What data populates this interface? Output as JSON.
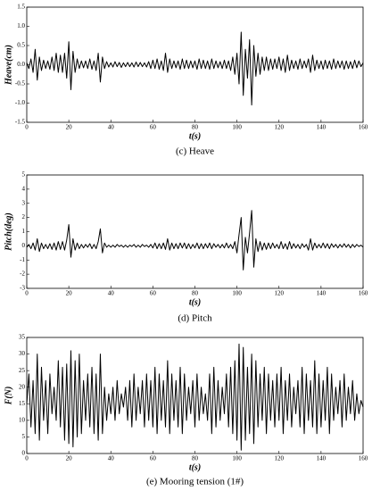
{
  "chart_data": [
    {
      "type": "line",
      "ylabel": "Heave(cm)",
      "xlabel": "t(s)",
      "caption": "(c) Heave",
      "color": "#000000",
      "xlim": [
        0,
        160
      ],
      "xticks": [
        0,
        20,
        40,
        60,
        80,
        100,
        120,
        140,
        160
      ],
      "ylim": [
        -1.5,
        1.5
      ],
      "yticks": [
        -1.5,
        {
          "value": -1,
          "label": "-1.0"
        },
        -0.5,
        {
          "value": 0,
          "label": "0.0"
        },
        0.5,
        {
          "value": 1,
          "label": "1.0"
        },
        1.5
      ],
      "x": [
        0,
        1,
        2,
        3,
        4,
        5,
        6,
        7,
        8,
        9,
        10,
        11,
        12,
        13,
        14,
        15,
        16,
        17,
        18,
        19,
        20,
        21,
        22,
        23,
        24,
        25,
        26,
        27,
        28,
        29,
        30,
        31,
        32,
        33,
        34,
        35,
        36,
        37,
        38,
        39,
        40,
        41,
        42,
        43,
        44,
        45,
        46,
        47,
        48,
        49,
        50,
        51,
        52,
        53,
        54,
        55,
        56,
        57,
        58,
        59,
        60,
        61,
        62,
        63,
        64,
        65,
        66,
        67,
        68,
        69,
        70,
        71,
        72,
        73,
        74,
        75,
        76,
        77,
        78,
        79,
        80,
        81,
        82,
        83,
        84,
        85,
        86,
        87,
        88,
        89,
        90,
        91,
        92,
        93,
        94,
        95,
        96,
        97,
        98,
        99,
        100,
        101,
        102,
        103,
        104,
        105,
        106,
        107,
        108,
        109,
        110,
        111,
        112,
        113,
        114,
        115,
        116,
        117,
        118,
        119,
        120,
        121,
        122,
        123,
        124,
        125,
        126,
        127,
        128,
        129,
        130,
        131,
        132,
        133,
        134,
        135,
        136,
        137,
        138,
        139,
        140,
        141,
        142,
        143,
        144,
        145,
        146,
        147,
        148,
        149,
        150,
        151,
        152,
        153,
        154,
        155,
        156,
        157,
        158,
        159,
        160
      ],
      "values": [
        0.05,
        -0.1,
        0.15,
        -0.2,
        0.4,
        -0.4,
        0.2,
        -0.15,
        0.12,
        -0.1,
        0.1,
        -0.12,
        0.2,
        -0.15,
        0.3,
        -0.2,
        0.25,
        -0.2,
        0.3,
        -0.35,
        0.6,
        -0.65,
        0.35,
        -0.2,
        0.15,
        -0.1,
        0.1,
        -0.08,
        0.1,
        -0.1,
        0.15,
        -0.12,
        0.1,
        -0.15,
        0.3,
        -0.45,
        0.2,
        -0.1,
        0.08,
        -0.06,
        0.05,
        -0.06,
        0.08,
        -0.05,
        0.06,
        -0.07,
        0.05,
        -0.05,
        0.06,
        -0.05,
        0.05,
        -0.06,
        0.07,
        -0.05,
        0.06,
        -0.05,
        0.05,
        -0.06,
        0.08,
        -0.1,
        0.12,
        -0.1,
        0.15,
        -0.12,
        0.1,
        -0.15,
        0.3,
        -0.2,
        0.15,
        -0.1,
        0.1,
        -0.08,
        0.1,
        -0.12,
        0.15,
        -0.1,
        0.12,
        -0.1,
        0.1,
        -0.08,
        0.1,
        -0.12,
        0.15,
        -0.1,
        0.12,
        -0.1,
        0.1,
        -0.12,
        0.15,
        -0.1,
        0.1,
        -0.08,
        0.08,
        -0.1,
        0.12,
        -0.1,
        0.1,
        -0.15,
        0.2,
        -0.25,
        0.3,
        -0.5,
        0.85,
        -0.8,
        0.4,
        -0.35,
        0.65,
        -1.05,
        0.5,
        -0.3,
        0.3,
        -0.25,
        0.2,
        -0.15,
        0.2,
        -0.15,
        0.15,
        -0.12,
        0.15,
        -0.1,
        0.2,
        -0.15,
        0.15,
        -0.2,
        0.25,
        -0.15,
        0.12,
        -0.1,
        0.1,
        -0.12,
        0.15,
        -0.1,
        0.1,
        -0.08,
        0.15,
        -0.2,
        0.25,
        -0.15,
        0.12,
        -0.1,
        0.1,
        -0.12,
        0.12,
        -0.1,
        0.1,
        -0.12,
        0.15,
        -0.1,
        0.1,
        -0.08,
        0.1,
        -0.12,
        0.1,
        -0.1,
        0.08,
        -0.1,
        0.12,
        -0.08,
        0.1,
        -0.05,
        0.05
      ]
    },
    {
      "type": "line",
      "ylabel": "Pitch(deg)",
      "xlabel": "t(s)",
      "caption": "(d) Pitch",
      "color": "#000000",
      "xlim": [
        0,
        160
      ],
      "xticks": [
        0,
        20,
        40,
        60,
        80,
        100,
        120,
        140,
        160
      ],
      "ylim": [
        -3,
        5
      ],
      "yticks": [
        -3,
        -2,
        -1,
        0,
        1,
        2,
        3,
        4,
        5
      ],
      "x": [
        0,
        1,
        2,
        3,
        4,
        5,
        6,
        7,
        8,
        9,
        10,
        11,
        12,
        13,
        14,
        15,
        16,
        17,
        18,
        19,
        20,
        21,
        22,
        23,
        24,
        25,
        26,
        27,
        28,
        29,
        30,
        31,
        32,
        33,
        34,
        35,
        36,
        37,
        38,
        39,
        40,
        41,
        42,
        43,
        44,
        45,
        46,
        47,
        48,
        49,
        50,
        51,
        52,
        53,
        54,
        55,
        56,
        57,
        58,
        59,
        60,
        61,
        62,
        63,
        64,
        65,
        66,
        67,
        68,
        69,
        70,
        71,
        72,
        73,
        74,
        75,
        76,
        77,
        78,
        79,
        80,
        81,
        82,
        83,
        84,
        85,
        86,
        87,
        88,
        89,
        90,
        91,
        92,
        93,
        94,
        95,
        96,
        97,
        98,
        99,
        100,
        101,
        102,
        103,
        104,
        105,
        106,
        107,
        108,
        109,
        110,
        111,
        112,
        113,
        114,
        115,
        116,
        117,
        118,
        119,
        120,
        121,
        122,
        123,
        124,
        125,
        126,
        127,
        128,
        129,
        130,
        131,
        132,
        133,
        134,
        135,
        136,
        137,
        138,
        139,
        140,
        141,
        142,
        143,
        144,
        145,
        146,
        147,
        148,
        149,
        150,
        151,
        152,
        153,
        154,
        155,
        156,
        157,
        158,
        159,
        160
      ],
      "values": [
        -0.1,
        0.1,
        -0.2,
        0.2,
        -0.3,
        0.5,
        -0.4,
        0.2,
        -0.2,
        0.1,
        -0.2,
        0.15,
        -0.25,
        0.2,
        -0.3,
        0.3,
        -0.25,
        0.3,
        -0.3,
        0.4,
        1.5,
        -0.8,
        0.5,
        -0.3,
        0.2,
        -0.2,
        0.1,
        -0.15,
        0.1,
        -0.1,
        0.15,
        -0.2,
        0.1,
        -0.2,
        0.3,
        1.2,
        -0.5,
        0.2,
        -0.1,
        0.05,
        -0.1,
        0.05,
        -0.1,
        0.1,
        -0.05,
        0.05,
        -0.1,
        0.05,
        -0.1,
        0.05,
        -0.05,
        0.1,
        -0.1,
        0.05,
        -0.1,
        0.1,
        -0.05,
        0.05,
        -0.1,
        0.1,
        -0.15,
        0.2,
        -0.2,
        0.15,
        -0.2,
        0.2,
        -0.25,
        0.5,
        -0.3,
        0.2,
        -0.2,
        0.15,
        -0.2,
        0.2,
        -0.15,
        0.2,
        -0.2,
        0.15,
        -0.2,
        0.1,
        -0.15,
        0.2,
        -0.2,
        0.15,
        -0.2,
        0.15,
        -0.15,
        0.2,
        -0.2,
        0.15,
        -0.1,
        0.1,
        -0.15,
        0.1,
        -0.15,
        0.2,
        -0.15,
        0.1,
        -0.2,
        0.3,
        -0.5,
        0.8,
        2.0,
        -1.7,
        0.6,
        -0.5,
        0.9,
        2.5,
        -1.5,
        0.5,
        -0.4,
        0.3,
        -0.3,
        0.2,
        -0.25,
        0.2,
        -0.2,
        0.2,
        -0.15,
        0.1,
        -0.2,
        0.3,
        -0.2,
        0.15,
        -0.25,
        0.3,
        -0.2,
        0.15,
        -0.15,
        0.1,
        -0.2,
        0.15,
        -0.1,
        0.1,
        -0.3,
        0.5,
        -0.3,
        0.2,
        -0.15,
        0.1,
        -0.15,
        0.2,
        -0.15,
        0.15,
        -0.2,
        0.15,
        -0.1,
        0.1,
        -0.15,
        0.1,
        -0.1,
        0.15,
        -0.1,
        0.1,
        -0.15,
        0.1,
        -0.1,
        0.1,
        -0.05,
        0.05,
        -0.1
      ]
    },
    {
      "type": "line",
      "ylabel": "F(N)",
      "xlabel": "t(s)",
      "caption": "(e) Mooring tension (1#)",
      "color": "#000000",
      "xlim": [
        0,
        160
      ],
      "xticks": [
        0,
        20,
        40,
        60,
        80,
        100,
        120,
        140,
        160
      ],
      "ylim": [
        0,
        35
      ],
      "yticks": [
        0,
        5,
        10,
        15,
        20,
        25,
        30,
        35
      ],
      "x": [
        0,
        1,
        2,
        3,
        4,
        5,
        6,
        7,
        8,
        9,
        10,
        11,
        12,
        13,
        14,
        15,
        16,
        17,
        18,
        19,
        20,
        21,
        22,
        23,
        24,
        25,
        26,
        27,
        28,
        29,
        30,
        31,
        32,
        33,
        34,
        35,
        36,
        37,
        38,
        39,
        40,
        41,
        42,
        43,
        44,
        45,
        46,
        47,
        48,
        49,
        50,
        51,
        52,
        53,
        54,
        55,
        56,
        57,
        58,
        59,
        60,
        61,
        62,
        63,
        64,
        65,
        66,
        67,
        68,
        69,
        70,
        71,
        72,
        73,
        74,
        75,
        76,
        77,
        78,
        79,
        80,
        81,
        82,
        83,
        84,
        85,
        86,
        87,
        88,
        89,
        90,
        91,
        92,
        93,
        94,
        95,
        96,
        97,
        98,
        99,
        100,
        101,
        102,
        103,
        104,
        105,
        106,
        107,
        108,
        109,
        110,
        111,
        112,
        113,
        114,
        115,
        116,
        117,
        118,
        119,
        120,
        121,
        122,
        123,
        124,
        125,
        126,
        127,
        128,
        129,
        130,
        131,
        132,
        133,
        134,
        135,
        136,
        137,
        138,
        139,
        140,
        141,
        142,
        143,
        144,
        145,
        146,
        147,
        148,
        149,
        150,
        151,
        152,
        153,
        154,
        155,
        156,
        157,
        158,
        159,
        160
      ],
      "values": [
        15,
        24,
        8,
        22,
        6,
        30,
        4,
        26,
        10,
        22,
        6,
        24,
        12,
        20,
        10,
        28,
        8,
        26,
        4,
        27,
        3,
        31,
        2,
        28,
        5,
        30,
        6,
        22,
        10,
        24,
        8,
        26,
        6,
        24,
        4,
        30,
        6,
        20,
        10,
        18,
        12,
        20,
        10,
        22,
        12,
        18,
        14,
        20,
        10,
        22,
        8,
        24,
        10,
        20,
        12,
        22,
        8,
        24,
        10,
        22,
        8,
        26,
        6,
        24,
        10,
        22,
        8,
        28,
        6,
        24,
        10,
        22,
        8,
        26,
        6,
        24,
        10,
        20,
        12,
        22,
        8,
        24,
        10,
        20,
        12,
        18,
        10,
        24,
        6,
        26,
        8,
        22,
        10,
        20,
        12,
        24,
        8,
        26,
        6,
        28,
        4,
        33,
        1,
        32,
        4,
        26,
        6,
        30,
        3,
        28,
        8,
        24,
        10,
        26,
        6,
        24,
        10,
        22,
        8,
        24,
        10,
        26,
        6,
        22,
        10,
        24,
        8,
        20,
        12,
        22,
        8,
        26,
        6,
        24,
        10,
        22,
        8,
        28,
        6,
        24,
        8,
        22,
        10,
        26,
        6,
        24,
        10,
        20,
        12,
        22,
        8,
        24,
        10,
        20,
        12,
        22,
        10,
        18,
        12,
        16,
        14
      ]
    }
  ]
}
